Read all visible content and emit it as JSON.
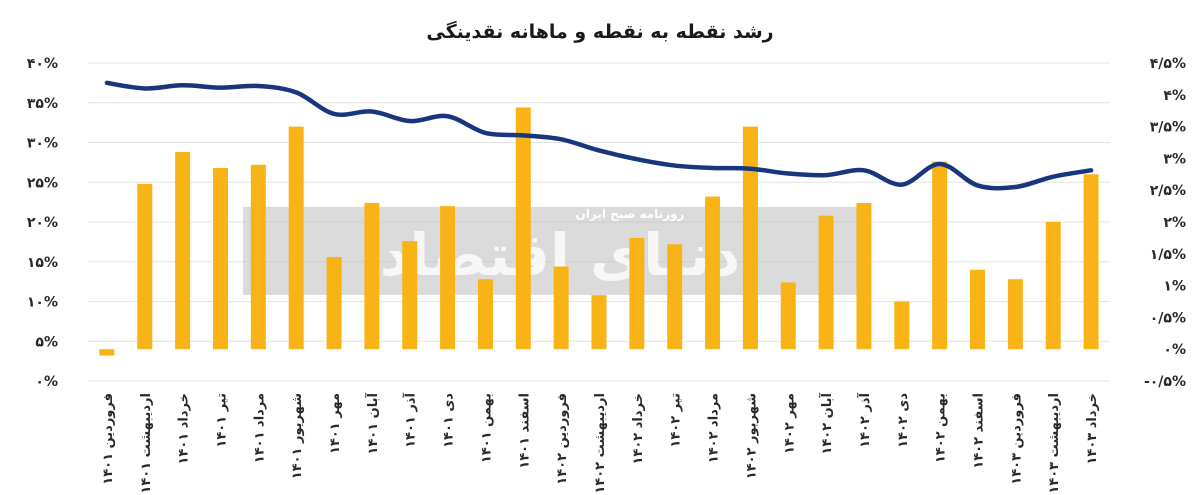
{
  "chart_data": {
    "type": "bar+line",
    "title": "رشد نقطه به نقطه و ماهانه نقدینگی",
    "categories": [
      "فروردین ۱۴۰۱",
      "اردیبهشت ۱۴۰۱",
      "خرداد ۱۴۰۱",
      "تیر ۱۴۰۱",
      "مرداد ۱۴۰۱",
      "شهریور ۱۴۰۱",
      "مهر ۱۴۰۱",
      "آبان ۱۴۰۱",
      "آذر ۱۴۰۱",
      "دی ۱۴۰۱",
      "بهمن ۱۴۰۱",
      "اسفند ۱۴۰۱",
      "فروردین ۱۴۰۲",
      "اردیبهشت ۱۴۰۲",
      "خرداد ۱۴۰۲",
      "تیر ۱۴۰۲",
      "مرداد ۱۴۰۲",
      "شهریور ۱۴۰۲",
      "مهر ۱۴۰۲",
      "آبان ۱۴۰۲",
      "آذر ۱۴۰۲",
      "دی ۱۴۰۲",
      "بهمن ۱۴۰۲",
      "اسفند ۱۴۰۲",
      "فروردین ۱۴۰۳",
      "اردیبهشت ۱۴۰۳",
      "خرداد ۱۴۰۳"
    ],
    "series": [
      {
        "kind": "bar",
        "axis": "right",
        "color": "#F8B417",
        "values": [
          -0.1,
          2.6,
          3.1,
          2.85,
          2.9,
          3.5,
          1.45,
          2.3,
          1.7,
          2.25,
          1.1,
          3.8,
          1.3,
          0.85,
          1.75,
          1.65,
          2.4,
          3.5,
          1.05,
          2.1,
          2.3,
          0.75,
          2.95,
          1.25,
          1.1,
          2.0,
          2.75
        ]
      },
      {
        "kind": "line",
        "axis": "left",
        "color": "#17367E",
        "values": [
          37.5,
          36.8,
          37.2,
          36.9,
          37.1,
          36.3,
          33.6,
          33.9,
          32.7,
          33.3,
          31.2,
          30.9,
          30.4,
          29.0,
          27.9,
          27.1,
          26.8,
          26.7,
          26.1,
          25.9,
          26.5,
          24.7,
          27.3,
          24.6,
          24.4,
          25.7,
          26.5
        ]
      }
    ],
    "left_axis": {
      "min": 0,
      "max": 40,
      "ticks": [
        "۰%",
        "۵%",
        "۱۰%",
        "۱۵%",
        "۲۰%",
        "۲۵%",
        "۳۰%",
        "۳۵%",
        "۴۰%"
      ]
    },
    "right_axis": {
      "min": -0.5,
      "max": 4.5,
      "ticks": [
        "-۰/۵%",
        "۰%",
        "۰/۵%",
        "۱%",
        "۱/۵%",
        "۲%",
        "۲/۵%",
        "۳%",
        "۳/۵%",
        "۴%",
        "۴/۵%"
      ]
    },
    "grid": true,
    "legend": "none"
  },
  "watermark": {
    "text": "دنیای اقتصاد",
    "subtext": "روزنامه صبح ایران"
  }
}
